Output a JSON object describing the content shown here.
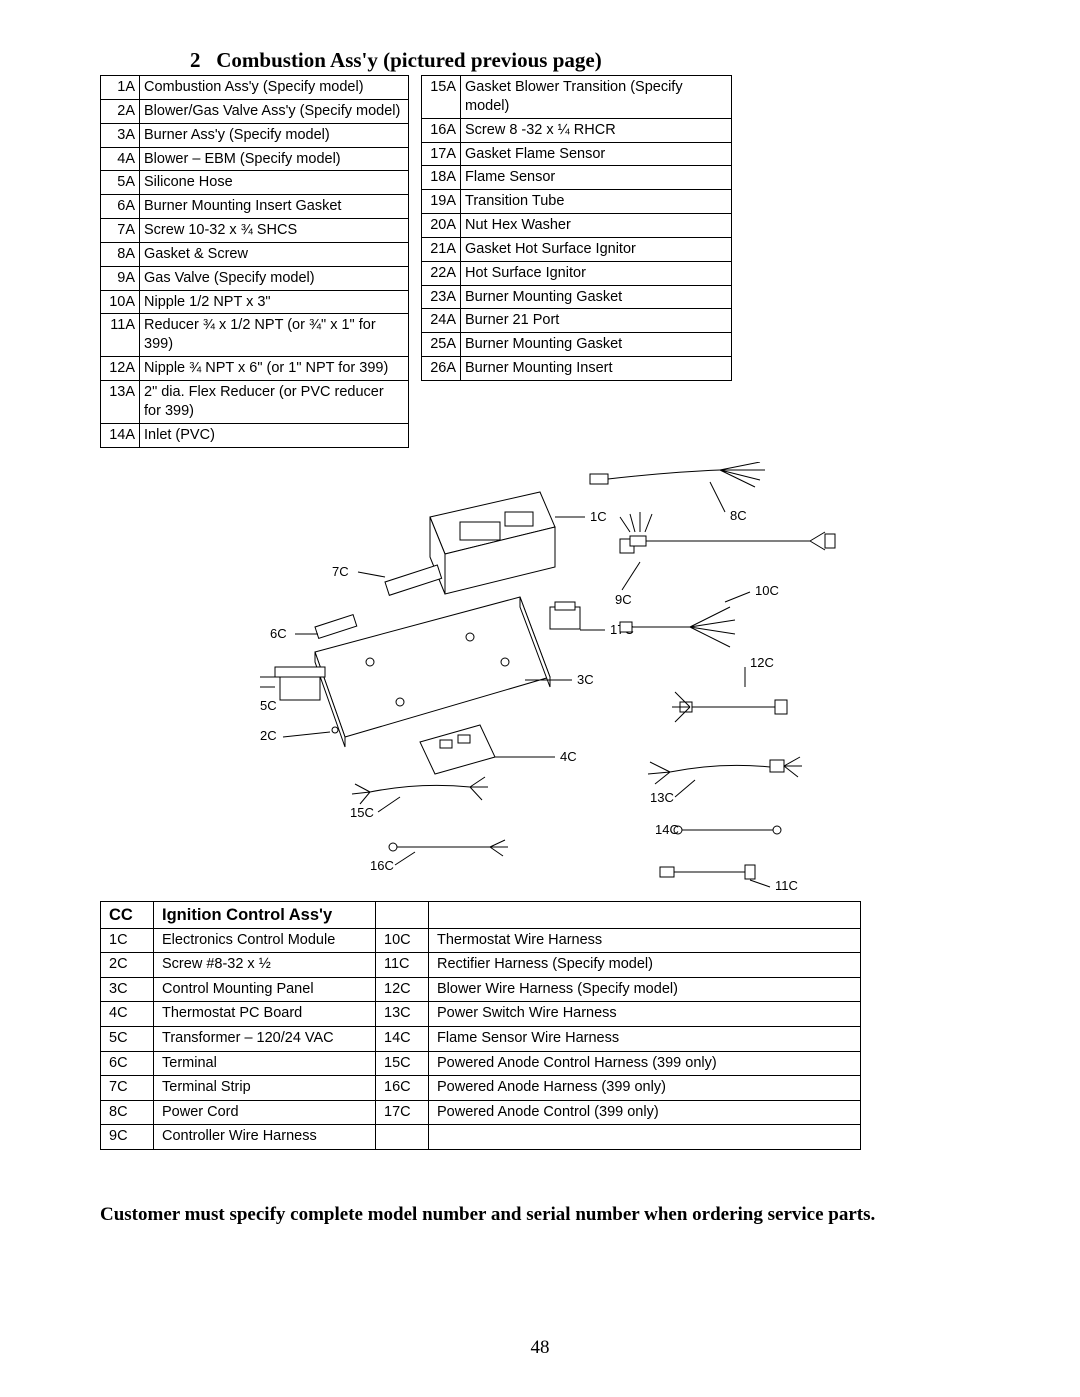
{
  "section2": {
    "title_prefix": "2",
    "title": "Combustion Ass'y (pictured previous page)",
    "left": [
      {
        "id": "1A",
        "d": "Combustion Ass'y (Specify model)"
      },
      {
        "id": "2A",
        "d": "Blower/Gas Valve Ass'y (Specify model)"
      },
      {
        "id": "3A",
        "d": "Burner Ass'y (Specify model)"
      },
      {
        "id": "4A",
        "d": "Blower – EBM (Specify model)"
      },
      {
        "id": "5A",
        "d": "Silicone Hose"
      },
      {
        "id": "6A",
        "d": "Burner Mounting Insert Gasket"
      },
      {
        "id": "7A",
        "d": "Screw 10-32 x ¾ SHCS"
      },
      {
        "id": "8A",
        "d": "Gasket & Screw"
      },
      {
        "id": "9A",
        "d": "Gas Valve (Specify model)"
      },
      {
        "id": "10A",
        "d": "Nipple 1/2 NPT x 3\""
      },
      {
        "id": "11A",
        "d": "Reducer ¾ x 1/2 NPT (or ¾\" x 1\" for 399)"
      },
      {
        "id": "12A",
        "d": "Nipple ¾ NPT x 6\" (or 1\" NPT for 399)"
      },
      {
        "id": "13A",
        "d": "2\" dia. Flex Reducer (or PVC reducer for 399)"
      },
      {
        "id": "14A",
        "d": "Inlet (PVC)"
      }
    ],
    "right": [
      {
        "id": "15A",
        "d": "Gasket Blower Transition (Specify model)"
      },
      {
        "id": "16A",
        "d": "Screw 8 -32 x ¼ RHCR"
      },
      {
        "id": "17A",
        "d": "Gasket Flame Sensor"
      },
      {
        "id": "18A",
        "d": "Flame Sensor"
      },
      {
        "id": "19A",
        "d": "Transition Tube"
      },
      {
        "id": "20A",
        "d": "Nut Hex Washer"
      },
      {
        "id": "21A",
        "d": "Gasket Hot Surface Ignitor"
      },
      {
        "id": "22A",
        "d": "Hot Surface Ignitor"
      },
      {
        "id": "23A",
        "d": "Burner Mounting Gasket"
      },
      {
        "id": "24A",
        "d": "Burner 21 Port"
      },
      {
        "id": "25A",
        "d": "Burner Mounting Gasket"
      },
      {
        "id": "26A",
        "d": "Burner Mounting Insert"
      }
    ]
  },
  "diagram": {
    "labels": {
      "c1": "1C",
      "c2": "2C",
      "c3": "3C",
      "c4": "4C",
      "c5": "5C",
      "c6": "6C",
      "c7": "7C",
      "c8": "8C",
      "c9": "9C",
      "c10": "10C",
      "c11": "11C",
      "c12": "12C",
      "c13": "13C",
      "c14": "14C",
      "c15": "15C",
      "c16": "16C",
      "c17": "17C"
    }
  },
  "sectionCC": {
    "header_code": "CC",
    "header_title": "Ignition Control Ass'y",
    "left": [
      {
        "id": "1C",
        "d": "Electronics Control Module"
      },
      {
        "id": "2C",
        "d": "Screw #8-32 x ½"
      },
      {
        "id": "3C",
        "d": "Control Mounting Panel"
      },
      {
        "id": "4C",
        "d": "Thermostat PC Board"
      },
      {
        "id": "5C",
        "d": "Transformer – 120/24 VAC"
      },
      {
        "id": "6C",
        "d": "Terminal"
      },
      {
        "id": "7C",
        "d": "Terminal Strip"
      },
      {
        "id": "8C",
        "d": "Power Cord"
      },
      {
        "id": "9C",
        "d": "Controller Wire Harness"
      }
    ],
    "right": [
      {
        "id": "10C",
        "d": "Thermostat Wire Harness"
      },
      {
        "id": "11C",
        "d": "Rectifier Harness (Specify model)"
      },
      {
        "id": "12C",
        "d": "Blower Wire Harness (Specify model)"
      },
      {
        "id": "13C",
        "d": "Power Switch Wire Harness"
      },
      {
        "id": "14C",
        "d": "Flame Sensor Wire Harness"
      },
      {
        "id": "15C",
        "d": "Powered Anode Control Harness (399 only)"
      },
      {
        "id": "16C",
        "d": "Powered Anode Harness (399 only)"
      },
      {
        "id": "17C",
        "d": "Powered Anode Control (399 only)"
      }
    ]
  },
  "footer_note": "Customer must specify complete model number and serial number when ordering service parts.",
  "page_number": "48",
  "style": {
    "page_bg": "#ffffff",
    "text_color": "#000000",
    "border_color": "#000000",
    "title_font": "Times New Roman",
    "body_font": "Arial",
    "title_size_pt": 16,
    "body_size_pt": 11
  }
}
